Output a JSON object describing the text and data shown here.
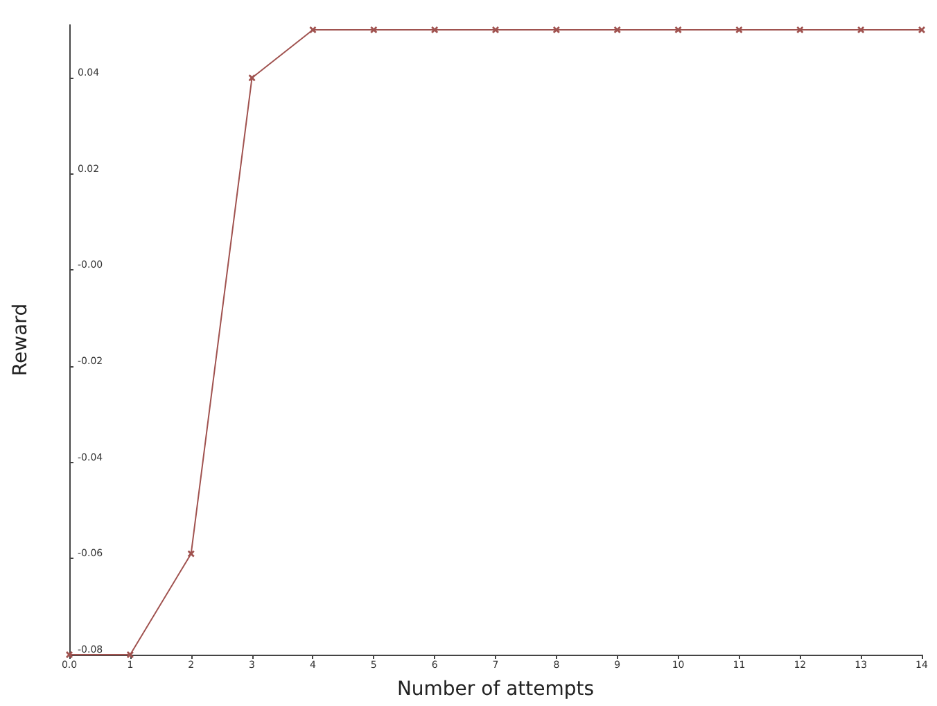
{
  "chart_data": {
    "type": "line",
    "xlabel": "Number of attempts",
    "ylabel": "Reward",
    "x": [
      0,
      1,
      2,
      3,
      4,
      5,
      6,
      7,
      8,
      9,
      10,
      11,
      12,
      13,
      14
    ],
    "series": [
      {
        "color": "#a0524f",
        "values": [
          -0.08,
          -0.08,
          -0.059,
          0.04,
          0.05,
          0.05,
          0.05,
          0.05,
          0.05,
          0.05,
          0.05,
          0.05,
          0.05,
          0.05,
          0.05
        ]
      }
    ],
    "xlim": [
      0,
      14
    ],
    "xticks": [
      {
        "value": 0,
        "label": "0.0"
      },
      1,
      2,
      3,
      4,
      5,
      6,
      7,
      8,
      9,
      10,
      11,
      12,
      13,
      14
    ],
    "ylim": [
      -0.08,
      0.051
    ],
    "yticks": [
      -0.08,
      -0.06,
      -0.04,
      -0.02,
      {
        "value": 0,
        "label": "-0.00"
      },
      0.02,
      0.04
    ],
    "grid": false,
    "marker": "cross",
    "line_style": "solid"
  }
}
